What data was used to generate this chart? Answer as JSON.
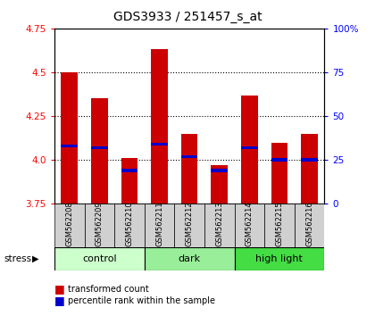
{
  "title": "GDS3933 / 251457_s_at",
  "samples": [
    "GSM562208",
    "GSM562209",
    "GSM562210",
    "GSM562211",
    "GSM562212",
    "GSM562213",
    "GSM562214",
    "GSM562215",
    "GSM562216"
  ],
  "bar_tops": [
    4.5,
    4.35,
    4.01,
    4.63,
    4.15,
    3.97,
    4.37,
    4.1,
    4.15
  ],
  "bar_base": 3.75,
  "blue_markers": [
    4.08,
    4.07,
    3.94,
    4.09,
    4.02,
    3.94,
    4.07,
    4.0,
    4.0
  ],
  "ylim": [
    3.75,
    4.75
  ],
  "yticks_left": [
    3.75,
    4.0,
    4.25,
    4.5,
    4.75
  ],
  "yticks_right_vals": [
    0,
    25,
    50,
    75,
    100
  ],
  "yticks_right_pos": [
    3.75,
    4.0,
    4.25,
    4.5,
    4.75
  ],
  "bar_color": "#cc0000",
  "blue_color": "#0000cc",
  "groups": [
    {
      "label": "control",
      "start": 0,
      "end": 3,
      "color": "#ccffcc"
    },
    {
      "label": "dark",
      "start": 3,
      "end": 6,
      "color": "#99ee99"
    },
    {
      "label": "high light",
      "start": 6,
      "end": 9,
      "color": "#44dd44"
    }
  ],
  "stress_label": "stress",
  "legend_red": "transformed count",
  "legend_blue": "percentile rank within the sample",
  "bar_width": 0.55,
  "title_fontsize": 10
}
